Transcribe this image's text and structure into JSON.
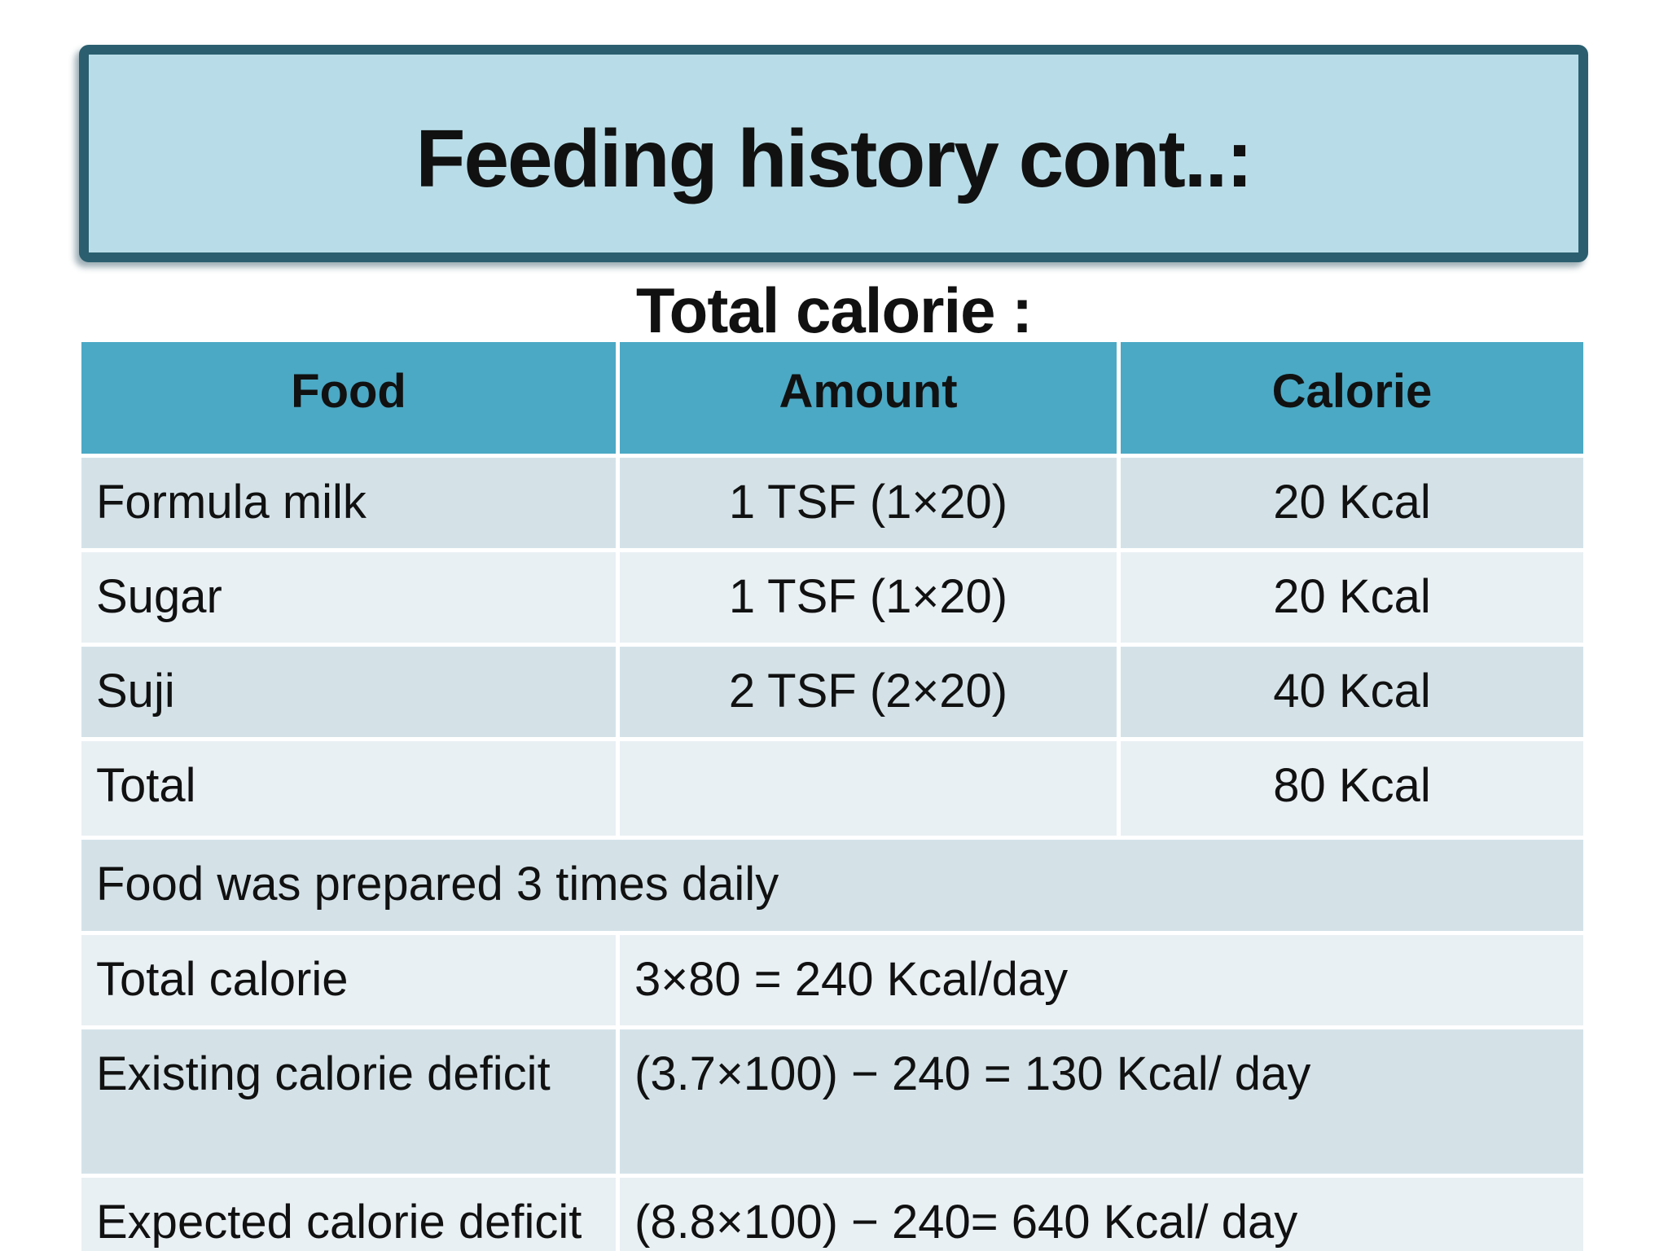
{
  "title_banner": {
    "text": "Feeding history cont..:",
    "fill_color": "#b9dde8",
    "border_color": "#2b5f6f"
  },
  "subtitle": "Total calorie :",
  "table": {
    "colors": {
      "header_bg": "#4ba9c5",
      "row_dark": "#d4e2e8",
      "row_light": "#e9f0f4",
      "divider": "#ffffff"
    },
    "header": [
      "Food",
      "Amount",
      "Calorie"
    ],
    "rows": [
      {
        "food": "Formula milk",
        "amount": "1 TSF (1×20)",
        "calorie": "20 Kcal"
      },
      {
        "food": "Sugar",
        "amount": "1 TSF (1×20)",
        "calorie": "20 Kcal"
      },
      {
        "food": "Suji",
        "amount": "2 TSF (2×20)",
        "calorie": "40 Kcal"
      },
      {
        "food": "Total",
        "amount": "",
        "calorie": "80 Kcal"
      }
    ],
    "note_row": "Food was prepared 3 times daily",
    "summary_rows": [
      {
        "label": "Total calorie",
        "value": "3×80 = 240 Kcal/day"
      },
      {
        "label": "Existing calorie deficit",
        "value": "(3.7×100) − 240 = 130 Kcal/ day"
      },
      {
        "label": "Expected calorie deficit",
        "value": "(8.8×100) − 240= 640 Kcal/ day"
      }
    ]
  }
}
